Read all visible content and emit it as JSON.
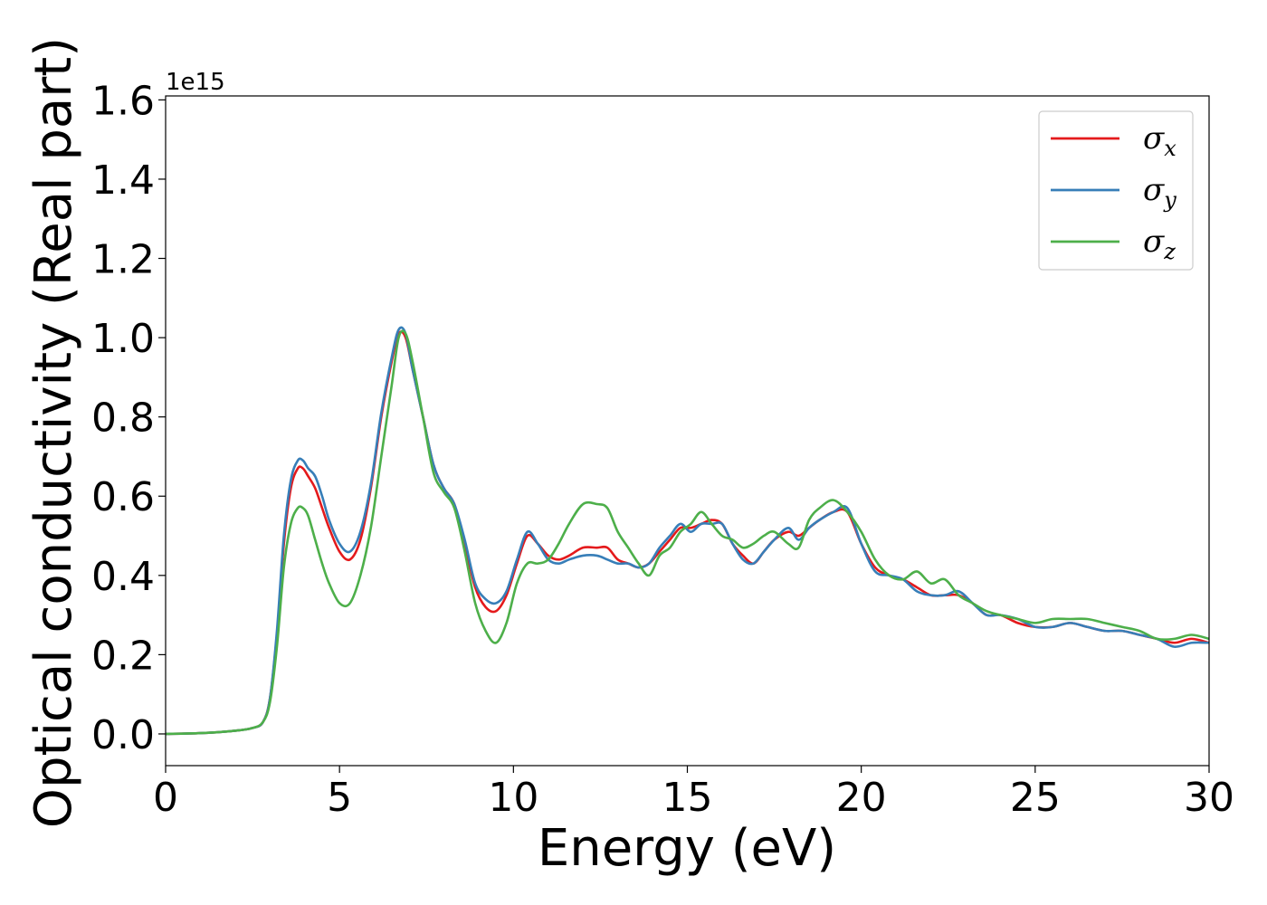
{
  "chart_data": {
    "type": "line",
    "xlabel": "Energy (eV)",
    "ylabel": "Optical conductivity (Real part)",
    "y_offset_text": "1e15",
    "xlim": [
      0,
      30
    ],
    "ylim": [
      -0.08,
      1.61
    ],
    "x_ticks": [
      0,
      5,
      10,
      15,
      20,
      25,
      30
    ],
    "x_tick_labels": [
      "0",
      "5",
      "10",
      "15",
      "20",
      "25",
      "30"
    ],
    "y_ticks": [
      0.0,
      0.2,
      0.4,
      0.6,
      0.8,
      1.0,
      1.2,
      1.4,
      1.6
    ],
    "y_tick_labels": [
      "0.0",
      "0.2",
      "0.4",
      "0.6",
      "0.8",
      "1.0",
      "1.2",
      "1.4",
      "1.6"
    ],
    "grid": false,
    "legend_position": "top-right",
    "series": [
      {
        "name": "σx",
        "symbol": "σ",
        "subscript": "x",
        "color": "#e41a1c",
        "x": [
          0,
          1,
          2,
          2.5,
          2.8,
          3.0,
          3.2,
          3.4,
          3.6,
          3.8,
          3.95,
          4.1,
          4.3,
          4.5,
          4.7,
          5.0,
          5.3,
          5.6,
          5.9,
          6.2,
          6.5,
          6.7,
          6.9,
          7.1,
          7.4,
          7.7,
          8.0,
          8.3,
          8.6,
          8.9,
          9.2,
          9.5,
          9.8,
          10.1,
          10.4,
          10.7,
          11.0,
          11.3,
          11.6,
          12.0,
          12.4,
          12.7,
          13.0,
          13.3,
          13.6,
          13.9,
          14.2,
          14.5,
          14.8,
          15.1,
          15.4,
          15.7,
          16.0,
          16.3,
          16.6,
          16.9,
          17.2,
          17.5,
          17.9,
          18.2,
          18.5,
          18.8,
          19.2,
          19.6,
          20.0,
          20.4,
          20.8,
          21.2,
          21.6,
          22.0,
          22.4,
          22.8,
          23.2,
          23.6,
          24.0,
          24.5,
          25.0,
          25.5,
          26.0,
          26.5,
          27.0,
          27.5,
          28.0,
          28.5,
          29.0,
          29.5,
          30.0
        ],
        "y": [
          0.0,
          0.002,
          0.008,
          0.015,
          0.03,
          0.09,
          0.25,
          0.48,
          0.62,
          0.67,
          0.67,
          0.65,
          0.62,
          0.57,
          0.52,
          0.46,
          0.44,
          0.49,
          0.62,
          0.8,
          0.94,
          1.01,
          1.0,
          0.92,
          0.8,
          0.68,
          0.62,
          0.58,
          0.48,
          0.37,
          0.32,
          0.31,
          0.35,
          0.43,
          0.5,
          0.48,
          0.45,
          0.44,
          0.45,
          0.47,
          0.47,
          0.47,
          0.44,
          0.43,
          0.42,
          0.43,
          0.46,
          0.49,
          0.52,
          0.52,
          0.53,
          0.54,
          0.53,
          0.48,
          0.45,
          0.43,
          0.46,
          0.49,
          0.51,
          0.5,
          0.52,
          0.54,
          0.56,
          0.56,
          0.48,
          0.42,
          0.4,
          0.39,
          0.37,
          0.35,
          0.35,
          0.35,
          0.33,
          0.3,
          0.3,
          0.28,
          0.27,
          0.27,
          0.28,
          0.27,
          0.26,
          0.26,
          0.25,
          0.24,
          0.23,
          0.24,
          0.23
        ]
      },
      {
        "name": "σy",
        "symbol": "σ",
        "subscript": "y",
        "color": "#377eb8",
        "x": [
          0,
          1,
          2,
          2.5,
          2.8,
          3.0,
          3.2,
          3.4,
          3.6,
          3.8,
          3.95,
          4.1,
          4.3,
          4.5,
          4.7,
          5.0,
          5.3,
          5.6,
          5.9,
          6.2,
          6.5,
          6.7,
          6.9,
          7.1,
          7.4,
          7.7,
          8.0,
          8.3,
          8.6,
          8.9,
          9.2,
          9.5,
          9.8,
          10.1,
          10.4,
          10.7,
          11.0,
          11.3,
          11.6,
          12.0,
          12.4,
          12.7,
          13.0,
          13.3,
          13.6,
          13.9,
          14.2,
          14.5,
          14.8,
          15.1,
          15.4,
          15.7,
          16.0,
          16.3,
          16.6,
          16.9,
          17.2,
          17.5,
          17.9,
          18.2,
          18.5,
          18.8,
          19.2,
          19.6,
          20.0,
          20.4,
          20.8,
          21.2,
          21.6,
          22.0,
          22.4,
          22.8,
          23.2,
          23.6,
          24.0,
          24.5,
          25.0,
          25.5,
          26.0,
          26.5,
          27.0,
          27.5,
          28.0,
          28.5,
          29.0,
          29.5,
          30.0
        ],
        "y": [
          0.0,
          0.002,
          0.008,
          0.015,
          0.03,
          0.09,
          0.26,
          0.5,
          0.64,
          0.69,
          0.69,
          0.67,
          0.65,
          0.6,
          0.54,
          0.48,
          0.46,
          0.51,
          0.63,
          0.81,
          0.95,
          1.02,
          1.01,
          0.92,
          0.8,
          0.68,
          0.62,
          0.58,
          0.49,
          0.38,
          0.34,
          0.33,
          0.36,
          0.44,
          0.51,
          0.48,
          0.44,
          0.43,
          0.44,
          0.45,
          0.45,
          0.44,
          0.43,
          0.43,
          0.42,
          0.43,
          0.47,
          0.5,
          0.53,
          0.51,
          0.53,
          0.53,
          0.53,
          0.48,
          0.44,
          0.43,
          0.46,
          0.49,
          0.52,
          0.49,
          0.52,
          0.54,
          0.56,
          0.57,
          0.48,
          0.41,
          0.4,
          0.39,
          0.36,
          0.35,
          0.35,
          0.36,
          0.33,
          0.3,
          0.3,
          0.29,
          0.27,
          0.27,
          0.28,
          0.27,
          0.26,
          0.26,
          0.25,
          0.24,
          0.22,
          0.23,
          0.23
        ]
      },
      {
        "name": "σz",
        "symbol": "σ",
        "subscript": "z",
        "color": "#4daf4a",
        "x": [
          0,
          1,
          2,
          2.5,
          2.8,
          3.0,
          3.2,
          3.4,
          3.6,
          3.8,
          3.95,
          4.1,
          4.3,
          4.5,
          4.7,
          5.0,
          5.3,
          5.6,
          5.9,
          6.2,
          6.5,
          6.7,
          6.9,
          7.1,
          7.4,
          7.7,
          8.0,
          8.3,
          8.6,
          8.9,
          9.2,
          9.5,
          9.8,
          10.1,
          10.4,
          10.7,
          11.0,
          11.3,
          11.6,
          12.0,
          12.4,
          12.7,
          13.0,
          13.3,
          13.6,
          13.9,
          14.2,
          14.5,
          14.8,
          15.1,
          15.4,
          15.7,
          16.0,
          16.3,
          16.6,
          16.9,
          17.2,
          17.5,
          17.9,
          18.2,
          18.5,
          18.8,
          19.2,
          19.6,
          20.0,
          20.4,
          20.8,
          21.2,
          21.6,
          22.0,
          22.4,
          22.8,
          23.2,
          23.6,
          24.0,
          24.5,
          25.0,
          25.5,
          26.0,
          26.5,
          27.0,
          27.5,
          28.0,
          28.5,
          29.0,
          29.5,
          30.0
        ],
        "y": [
          0.0,
          0.002,
          0.008,
          0.015,
          0.03,
          0.08,
          0.22,
          0.42,
          0.53,
          0.57,
          0.57,
          0.55,
          0.49,
          0.43,
          0.38,
          0.33,
          0.33,
          0.4,
          0.52,
          0.7,
          0.88,
          1.0,
          1.01,
          0.94,
          0.8,
          0.66,
          0.61,
          0.57,
          0.46,
          0.33,
          0.26,
          0.23,
          0.28,
          0.38,
          0.43,
          0.43,
          0.44,
          0.48,
          0.53,
          0.58,
          0.58,
          0.57,
          0.51,
          0.47,
          0.43,
          0.4,
          0.45,
          0.47,
          0.51,
          0.53,
          0.56,
          0.53,
          0.5,
          0.49,
          0.47,
          0.48,
          0.5,
          0.51,
          0.48,
          0.47,
          0.54,
          0.57,
          0.59,
          0.56,
          0.51,
          0.44,
          0.4,
          0.39,
          0.41,
          0.38,
          0.39,
          0.35,
          0.33,
          0.31,
          0.3,
          0.29,
          0.28,
          0.29,
          0.29,
          0.29,
          0.28,
          0.27,
          0.26,
          0.24,
          0.24,
          0.25,
          0.24
        ]
      }
    ]
  }
}
